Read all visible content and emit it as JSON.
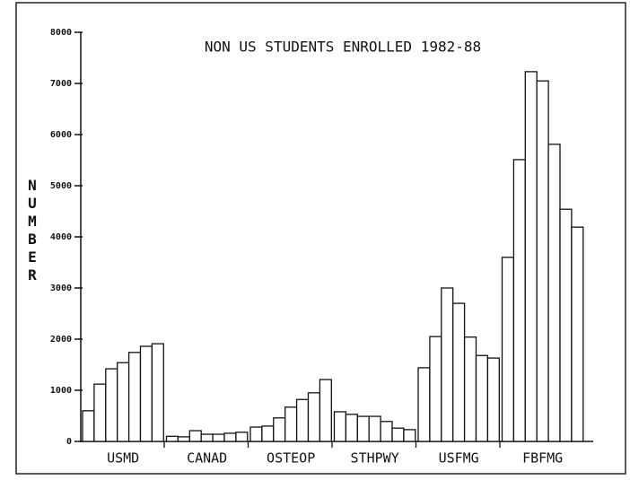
{
  "chart_data": {
    "type": "bar",
    "title": "NON US STUDENTS ENROLLED 1982-88",
    "y_label": "NUMBER",
    "categories": [
      "USMD",
      "CANAD",
      "OSTEOP",
      "STHPWY",
      "USFMG",
      "FBFMG"
    ],
    "series": [
      {
        "color": "#ffffff",
        "values": [
          600,
          100,
          280,
          580,
          1440,
          3600
        ]
      },
      {
        "color": "#ffffff",
        "values": [
          1120,
          90,
          300,
          530,
          2050,
          5510
        ]
      },
      {
        "color": "#ffffff",
        "values": [
          1420,
          210,
          460,
          490,
          3000,
          7230
        ]
      },
      {
        "color": "#ffffff",
        "values": [
          1540,
          140,
          670,
          490,
          2700,
          7050
        ]
      },
      {
        "color": "#ffffff",
        "values": [
          1740,
          140,
          820,
          390,
          2040,
          5810
        ]
      },
      {
        "color": "#ffffff",
        "values": [
          1860,
          160,
          950,
          260,
          1680,
          4540
        ]
      },
      {
        "color": "#ffffff",
        "values": [
          1910,
          180,
          1210,
          230,
          1630,
          4190
        ]
      }
    ],
    "edgecolor": "#111111",
    "ylim": [
      0,
      8000
    ],
    "yticks": [
      0,
      1000,
      2000,
      3000,
      4000,
      5000,
      6000,
      7000,
      8000
    ]
  }
}
